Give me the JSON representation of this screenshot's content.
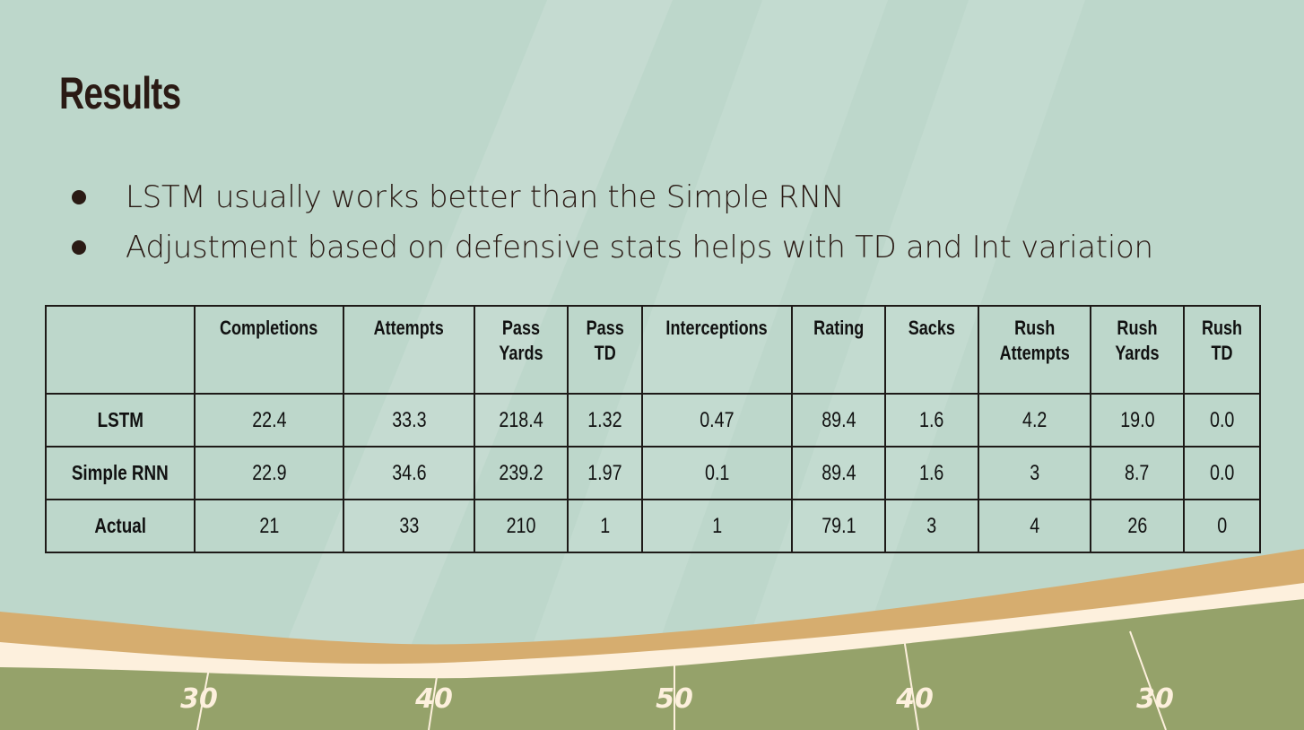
{
  "slide": {
    "title": "Results",
    "bullets": [
      "LSTM usually works better than the Simple RNN",
      "Adjustment based on defensive stats helps with TD and Int variation"
    ]
  },
  "table": {
    "corner": "",
    "columns": [
      "Completions",
      "Attempts",
      "Pass\nYards",
      "Pass\nTD",
      "Interceptions",
      "Rating",
      "Sacks",
      "Rush\nAttempts",
      "Rush\nYards",
      "Rush\nTD"
    ],
    "rows": [
      {
        "label": "LSTM",
        "values": [
          "22.4",
          "33.3",
          "218.4",
          "1.32",
          "0.47",
          "89.4",
          "1.6",
          "4.2",
          "19.0",
          "0.0"
        ]
      },
      {
        "label": "Simple RNN",
        "values": [
          "22.9",
          "34.6",
          "239.2",
          "1.97",
          "0.1",
          "89.4",
          "1.6",
          "3",
          "8.7",
          "0.0"
        ]
      },
      {
        "label": "Actual",
        "values": [
          "21",
          "33",
          "210",
          "1",
          "1",
          "79.1",
          "3",
          "4",
          "26",
          "0"
        ]
      }
    ]
  },
  "field": {
    "yard_markers": [
      "30",
      "40",
      "50",
      "40",
      "30"
    ]
  },
  "colors": {
    "background": "#bdd7cb",
    "field_green": "#95a26a",
    "tan_band": "#d6ad6f",
    "cream_band": "#fdf0dd",
    "text_dark": "#2a1a14"
  }
}
